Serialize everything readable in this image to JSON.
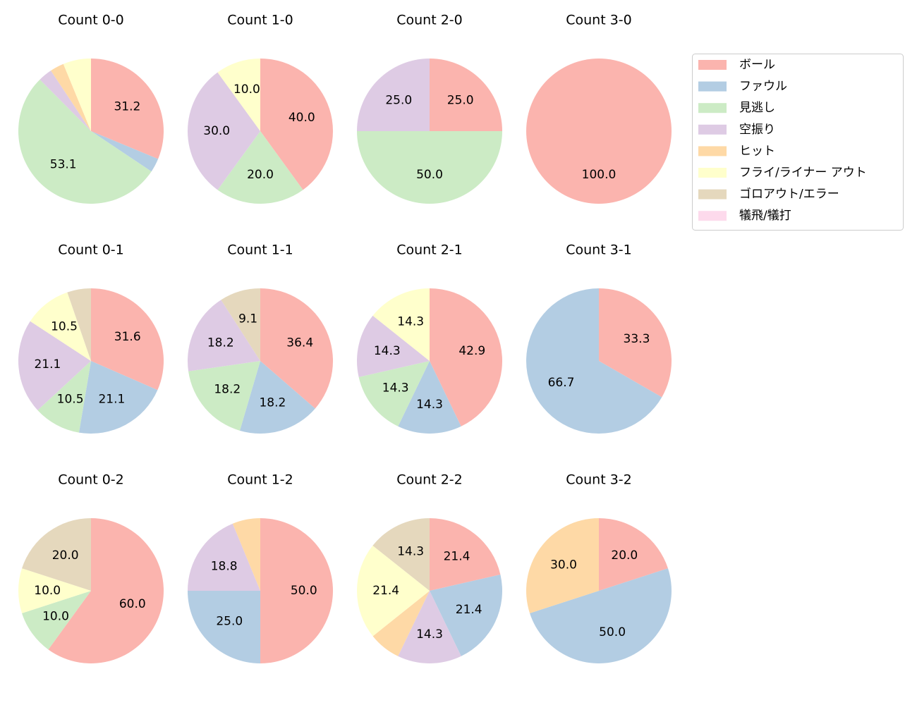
{
  "legend": {
    "entries": [
      {
        "name": "ボール",
        "color": "#fbb4ae"
      },
      {
        "name": "ファウル",
        "color": "#b3cde3"
      },
      {
        "name": "見逃し",
        "color": "#ccebc5"
      },
      {
        "name": "空振り",
        "color": "#decbe4"
      },
      {
        "name": "ヒット",
        "color": "#fed9a6"
      },
      {
        "name": "フライ/ライナー アウト",
        "color": "#ffffcc"
      },
      {
        "name": "ゴロアウト/エラー",
        "color": "#e5d8bd"
      },
      {
        "name": "犠飛/犠打",
        "color": "#fddaec"
      }
    ]
  },
  "chart_data": [
    {
      "type": "pie",
      "title": "Count 0-0",
      "values": [
        31.2,
        3.1,
        53.1,
        3.1,
        3.1,
        6.2,
        0,
        0
      ],
      "value_labels": [
        "31.2",
        null,
        "53.1",
        null,
        null,
        null,
        null,
        null
      ]
    },
    {
      "type": "pie",
      "title": "Count 1-0",
      "values": [
        40,
        0,
        20,
        30,
        0,
        10,
        0,
        0
      ],
      "value_labels": [
        "40.0",
        null,
        "20.0",
        "30.0",
        null,
        "10.0",
        null,
        null
      ]
    },
    {
      "type": "pie",
      "title": "Count 2-0",
      "values": [
        25,
        0,
        50,
        25,
        0,
        0,
        0,
        0
      ],
      "value_labels": [
        "25.0",
        null,
        "50.0",
        "25.0",
        null,
        null,
        null,
        null
      ]
    },
    {
      "type": "pie",
      "title": "Count 3-0",
      "values": [
        100,
        0,
        0,
        0,
        0,
        0,
        0,
        0
      ],
      "value_labels": [
        "100.0",
        null,
        null,
        null,
        null,
        null,
        null,
        null
      ]
    },
    {
      "type": "pie",
      "title": "Count 0-1",
      "values": [
        31.6,
        21.1,
        10.5,
        21.1,
        0,
        10.5,
        5.3,
        0
      ],
      "value_labels": [
        "31.6",
        "21.1",
        "10.5",
        "21.1",
        null,
        "10.5",
        null,
        null
      ]
    },
    {
      "type": "pie",
      "title": "Count 1-1",
      "values": [
        36.4,
        18.2,
        18.2,
        18.2,
        0,
        0,
        9.1,
        0
      ],
      "value_labels": [
        "36.4",
        "18.2",
        "18.2",
        "18.2",
        null,
        null,
        "9.1",
        null
      ]
    },
    {
      "type": "pie",
      "title": "Count 2-1",
      "values": [
        42.9,
        14.3,
        14.3,
        14.3,
        0,
        14.3,
        0,
        0
      ],
      "value_labels": [
        "42.9",
        "14.3",
        "14.3",
        "14.3",
        null,
        "14.3",
        null,
        null
      ]
    },
    {
      "type": "pie",
      "title": "Count 3-1",
      "values": [
        33.3,
        66.7,
        0,
        0,
        0,
        0,
        0,
        0
      ],
      "value_labels": [
        "33.3",
        "66.7",
        null,
        null,
        null,
        null,
        null,
        null
      ]
    },
    {
      "type": "pie",
      "title": "Count 0-2",
      "values": [
        60,
        0,
        10,
        0,
        0,
        10,
        20,
        0
      ],
      "value_labels": [
        "60.0",
        null,
        "10.0",
        null,
        null,
        "10.0",
        "20.0",
        null
      ]
    },
    {
      "type": "pie",
      "title": "Count 1-2",
      "values": [
        50,
        25,
        0,
        18.8,
        6.2,
        0,
        0,
        0
      ],
      "value_labels": [
        "50.0",
        "25.0",
        null,
        "18.8",
        null,
        null,
        null,
        null
      ]
    },
    {
      "type": "pie",
      "title": "Count 2-2",
      "values": [
        21.4,
        21.4,
        0,
        14.3,
        7.1,
        21.4,
        14.3,
        0
      ],
      "value_labels": [
        "21.4",
        "21.4",
        null,
        "14.3",
        null,
        "21.4",
        "14.3",
        null
      ]
    },
    {
      "type": "pie",
      "title": "Count 3-2",
      "values": [
        20,
        50,
        0,
        0,
        30,
        0,
        0,
        0
      ],
      "value_labels": [
        "20.0",
        "50.0",
        null,
        null,
        "30.0",
        null,
        null,
        null
      ]
    }
  ]
}
